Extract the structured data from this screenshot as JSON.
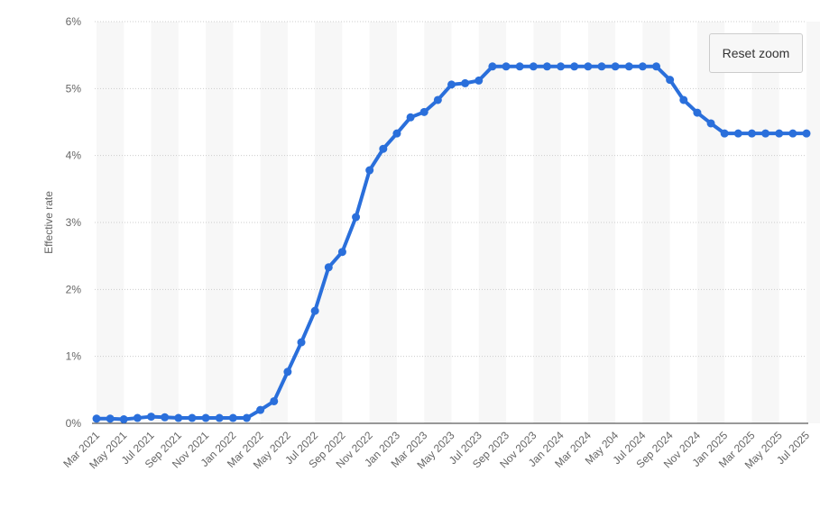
{
  "chart_data": {
    "type": "line",
    "y_axis_label": "Effective rate",
    "categories": [
      "Mar 2021",
      null,
      "May 2021",
      null,
      "Jul 2021",
      null,
      "Sep 2021",
      null,
      "Nov 2021",
      null,
      "Jan 2022",
      null,
      "Mar 2022",
      null,
      "May 2022",
      null,
      "Jul 2022",
      null,
      "Sep 2022",
      null,
      "Nov 2022",
      null,
      "Jan 2023",
      null,
      "Mar 2023",
      null,
      "May 2023",
      null,
      "Jul 2023",
      null,
      "Sep 2023",
      null,
      "Nov 2023",
      null,
      "Jan 2024",
      null,
      "Mar 2024",
      null,
      "May 204",
      null,
      "Jul 2024",
      null,
      "Sep 2024",
      null,
      "Nov 2024",
      null,
      "Jan 2025",
      null,
      "Mar 2025",
      null,
      "May 2025",
      null,
      "Jul 2025"
    ],
    "series": [
      {
        "name": "Effective rate",
        "color": "#2a6fdb",
        "values": [
          0.07,
          0.07,
          0.06,
          0.08,
          0.1,
          0.09,
          0.08,
          0.08,
          0.08,
          0.08,
          0.08,
          0.08,
          0.2,
          0.33,
          0.77,
          1.21,
          1.68,
          2.33,
          2.56,
          3.08,
          3.78,
          4.1,
          4.33,
          4.57,
          4.65,
          4.83,
          5.06,
          5.08,
          5.12,
          5.33,
          5.33,
          5.33,
          5.33,
          5.33,
          5.33,
          5.33,
          5.33,
          5.33,
          5.33,
          5.33,
          5.33,
          5.33,
          5.13,
          4.83,
          4.64,
          4.48,
          4.33,
          4.33,
          4.33,
          4.33,
          4.33,
          4.33,
          4.33
        ]
      }
    ],
    "ylim": [
      0,
      6
    ],
    "yticks": [
      {
        "value": 0,
        "label": "0%"
      },
      {
        "value": 1,
        "label": "1%"
      },
      {
        "value": 2,
        "label": "2%"
      },
      {
        "value": 3,
        "label": "3%"
      },
      {
        "value": 4,
        "label": "4%"
      },
      {
        "value": 5,
        "label": "5%"
      },
      {
        "value": 6,
        "label": "6%"
      }
    ],
    "grid": true
  },
  "reset_zoom": "Reset zoom"
}
